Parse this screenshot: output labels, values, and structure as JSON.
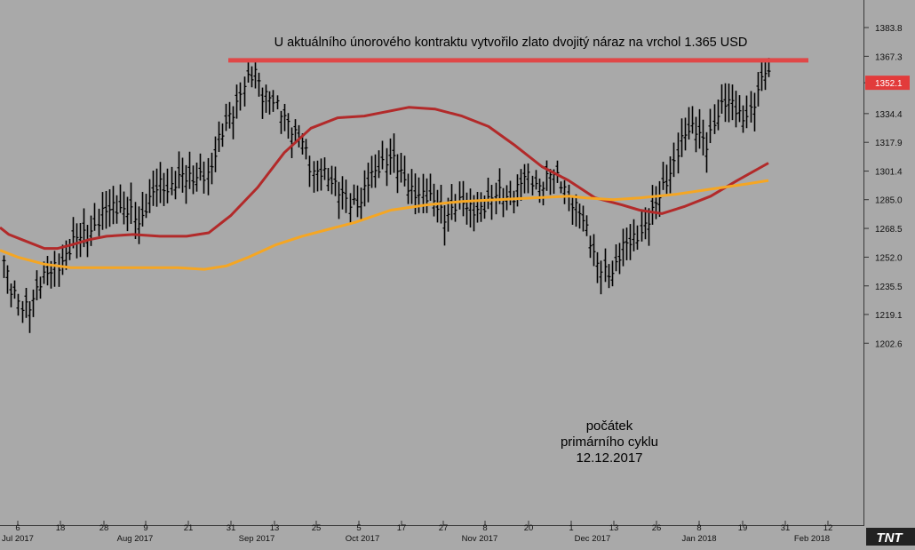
{
  "chart_data": {
    "type": "bar",
    "subtype": "ohlc-price-chart",
    "title": "U aktuálního únorového kontraktu vytvořilo zlato dvojitý náraz na vrchol 1.365 USD",
    "y_axis": {
      "position": "right",
      "ticks": [
        "1383.8",
        "1367.3",
        "1352.1",
        "1334.4",
        "1317.9",
        "1301.4",
        "1285.0",
        "1268.5",
        "1252.0",
        "1235.5",
        "1219.1",
        "1202.6"
      ],
      "range": [
        1190,
        1390
      ],
      "current_price_label": "1352.1",
      "current_price_color": "#e23b3b"
    },
    "x_axis": {
      "day_ticks": [
        "6",
        "18",
        "28",
        "9",
        "21",
        "31",
        "13",
        "25",
        "5",
        "17",
        "27",
        "8",
        "20",
        "1",
        "13",
        "26",
        "8",
        "19",
        "31",
        "12"
      ],
      "month_labels": [
        "Jul 2017",
        "Aug 2017",
        "Sep 2017",
        "Oct 2017",
        "Nov 2017",
        "Dec 2017",
        "Jan 2018",
        "Feb 2018"
      ]
    },
    "resistance_line": {
      "price": 1365,
      "color": "#e04848"
    },
    "annotation": {
      "lines": [
        "počátek",
        "primárního cyklu",
        "12.12.2017"
      ]
    },
    "series": [
      {
        "color": "#b22a2a",
        "points": [
          [
            0,
            1269
          ],
          [
            10,
            1265
          ],
          [
            25,
            1262
          ],
          [
            50,
            1257
          ],
          [
            65,
            1257
          ],
          [
            80,
            1259
          ],
          [
            100,
            1262
          ],
          [
            120,
            1264
          ],
          [
            150,
            1265
          ],
          [
            180,
            1264
          ],
          [
            210,
            1264
          ],
          [
            235,
            1266
          ],
          [
            260,
            1276
          ],
          [
            290,
            1292
          ],
          [
            320,
            1312
          ],
          [
            350,
            1326
          ],
          [
            380,
            1332
          ],
          [
            410,
            1333
          ],
          [
            430,
            1335
          ],
          [
            460,
            1338
          ],
          [
            490,
            1337
          ],
          [
            520,
            1333
          ],
          [
            550,
            1327
          ],
          [
            580,
            1316
          ],
          [
            610,
            1304
          ],
          [
            640,
            1296
          ],
          [
            670,
            1286
          ],
          [
            700,
            1282
          ],
          [
            720,
            1279
          ],
          [
            745,
            1277
          ],
          [
            770,
            1281
          ],
          [
            800,
            1287
          ],
          [
            830,
            1296
          ],
          [
            865,
            1306
          ]
        ]
      },
      {
        "color": "#f5a623",
        "points": [
          [
            0,
            1256
          ],
          [
            20,
            1252
          ],
          [
            50,
            1248
          ],
          [
            80,
            1246
          ],
          [
            110,
            1246
          ],
          [
            140,
            1246
          ],
          [
            170,
            1246
          ],
          [
            200,
            1246
          ],
          [
            230,
            1245
          ],
          [
            255,
            1247
          ],
          [
            280,
            1252
          ],
          [
            310,
            1259
          ],
          [
            340,
            1264
          ],
          [
            370,
            1268
          ],
          [
            400,
            1272
          ],
          [
            440,
            1279
          ],
          [
            480,
            1282
          ],
          [
            520,
            1284
          ],
          [
            560,
            1285
          ],
          [
            600,
            1286
          ],
          [
            640,
            1287
          ],
          [
            660,
            1286
          ],
          [
            690,
            1285
          ],
          [
            720,
            1286
          ],
          [
            760,
            1288
          ],
          [
            800,
            1291
          ],
          [
            840,
            1294
          ],
          [
            865,
            1296
          ]
        ]
      }
    ]
  },
  "watermark": "TNT"
}
